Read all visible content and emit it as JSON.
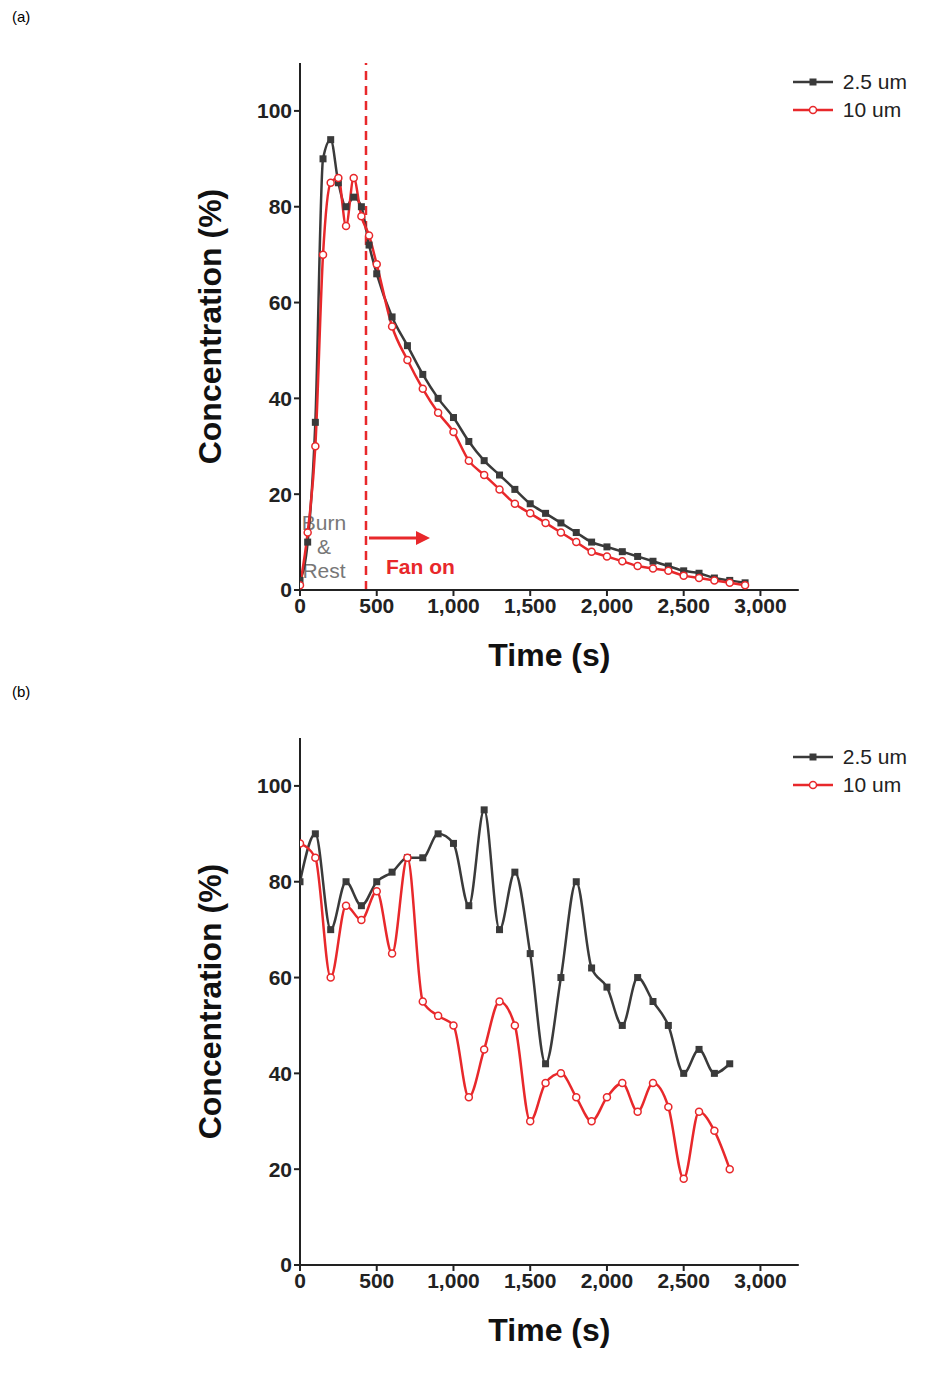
{
  "chart_data": [
    {
      "type": "line",
      "title": "(a)",
      "x_label": "Time (s)",
      "y_label": "Concentration (%)",
      "x": [
        0,
        50,
        100,
        150,
        200,
        250,
        300,
        350,
        400,
        450,
        500,
        600,
        700,
        800,
        900,
        1000,
        1100,
        1200,
        1300,
        1400,
        1500,
        1600,
        1700,
        1800,
        1900,
        2000,
        2100,
        2200,
        2300,
        2400,
        2500,
        2600,
        2700,
        2800,
        2900
      ],
      "xlim": [
        0,
        3250
      ],
      "xticks": [
        0,
        500,
        {
          "value": 1000,
          "label": "1,000"
        },
        {
          "value": 1500,
          "label": "1,500"
        },
        {
          "value": 2000,
          "label": "2,000"
        },
        {
          "value": 2500,
          "label": "2,500"
        },
        {
          "value": 3000,
          "label": "3,000"
        }
      ],
      "ylim": [
        0,
        110
      ],
      "yticks": [
        0,
        20,
        40,
        60,
        80,
        100
      ],
      "grid": false,
      "legend": "upper right",
      "series": [
        {
          "name": "2.5 um",
          "color": "#3a3a3a",
          "marker": "square",
          "values": [
            2,
            10,
            35,
            90,
            94,
            85,
            80,
            82,
            80,
            72,
            66,
            57,
            51,
            45,
            40,
            36,
            31,
            27,
            24,
            21,
            18,
            16,
            14,
            12,
            10,
            9,
            8,
            7,
            6,
            5,
            4,
            3.5,
            2.5,
            2,
            1.5
          ]
        },
        {
          "name": "10 um",
          "color": "#e8282b",
          "marker": "circle",
          "values": [
            1,
            12,
            30,
            70,
            85,
            86,
            76,
            86,
            78,
            74,
            68,
            55,
            48,
            42,
            37,
            33,
            27,
            24,
            21,
            18,
            16,
            14,
            12,
            10,
            8,
            7,
            6,
            5,
            4.5,
            4,
            3,
            2.5,
            2,
            1.5,
            1
          ]
        }
      ],
      "vline": {
        "x": 430,
        "color": "#e8282b",
        "line_style": "dashed"
      },
      "annotations": [
        {
          "lines": [
            "Burn",
            "&",
            "Rest"
          ],
          "color": "#777777"
        },
        {
          "lines": [
            "Fan on"
          ],
          "color": "#e8282b"
        }
      ]
    },
    {
      "type": "line",
      "title": "(b)",
      "x_label": "Time (s)",
      "y_label": "Concentration (%)",
      "x": [
        0,
        100,
        200,
        300,
        400,
        500,
        600,
        700,
        800,
        900,
        1000,
        1100,
        1200,
        1300,
        1400,
        1500,
        1600,
        1700,
        1800,
        1900,
        2000,
        2100,
        2200,
        2300,
        2400,
        2500,
        2600,
        2700,
        2800
      ],
      "xlim": [
        0,
        3250
      ],
      "xticks": [
        0,
        500,
        {
          "value": 1000,
          "label": "1,000"
        },
        {
          "value": 1500,
          "label": "1,500"
        },
        {
          "value": 2000,
          "label": "2,000"
        },
        {
          "value": 2500,
          "label": "2,500"
        },
        {
          "value": 3000,
          "label": "3,000"
        }
      ],
      "ylim": [
        0,
        110
      ],
      "yticks": [
        0,
        20,
        40,
        60,
        80,
        100
      ],
      "grid": false,
      "legend": "upper right",
      "series": [
        {
          "name": "2.5 um",
          "color": "#3a3a3a",
          "marker": "square",
          "values": [
            80,
            90,
            70,
            80,
            75,
            80,
            82,
            85,
            85,
            90,
            88,
            75,
            95,
            70,
            82,
            65,
            42,
            60,
            80,
            62,
            58,
            50,
            60,
            55,
            50,
            40,
            45,
            40,
            42
          ]
        },
        {
          "name": "10 um",
          "color": "#e8282b",
          "marker": "circle",
          "values": [
            88,
            85,
            60,
            75,
            72,
            78,
            65,
            85,
            55,
            52,
            50,
            35,
            45,
            55,
            50,
            30,
            38,
            40,
            35,
            30,
            35,
            38,
            32,
            38,
            33,
            18,
            32,
            28,
            20
          ]
        }
      ]
    }
  ]
}
